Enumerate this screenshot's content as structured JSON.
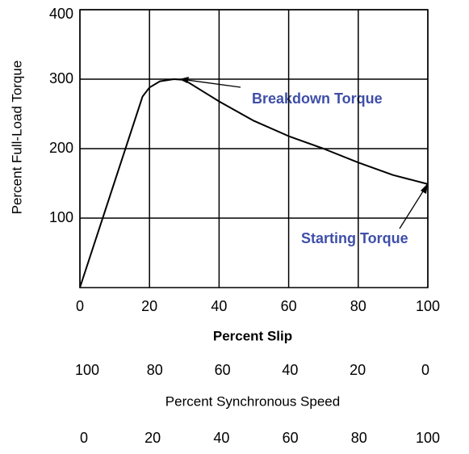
{
  "chart_data": {
    "type": "line",
    "ylabel": "Percent Full-Load Torque",
    "xlabel": "Percent Slip",
    "x": [
      0,
      18,
      20,
      23,
      27,
      30,
      40,
      50,
      60,
      70,
      80,
      90,
      100
    ],
    "values": [
      0,
      275,
      288,
      297,
      300,
      299,
      268,
      240,
      218,
      200,
      180,
      162,
      149
    ],
    "color": "#000000",
    "xlim": [
      0,
      100
    ],
    "xticks": [
      0,
      20,
      40,
      60,
      80,
      100
    ],
    "ylim": [
      0,
      400
    ],
    "yticks": [
      100,
      200,
      300,
      400
    ],
    "grid": true,
    "x2label": "Percent Synchronous Speed",
    "x2ticks": [
      100,
      80,
      60,
      40,
      20,
      0
    ],
    "x3ticks": [
      0,
      20,
      40,
      60,
      80,
      100
    ],
    "annotations": [
      {
        "text": "Breakdown Torque",
        "color": "#3f4fa8"
      },
      {
        "text": "Starting Torque",
        "color": "#3f4fa8"
      }
    ]
  }
}
